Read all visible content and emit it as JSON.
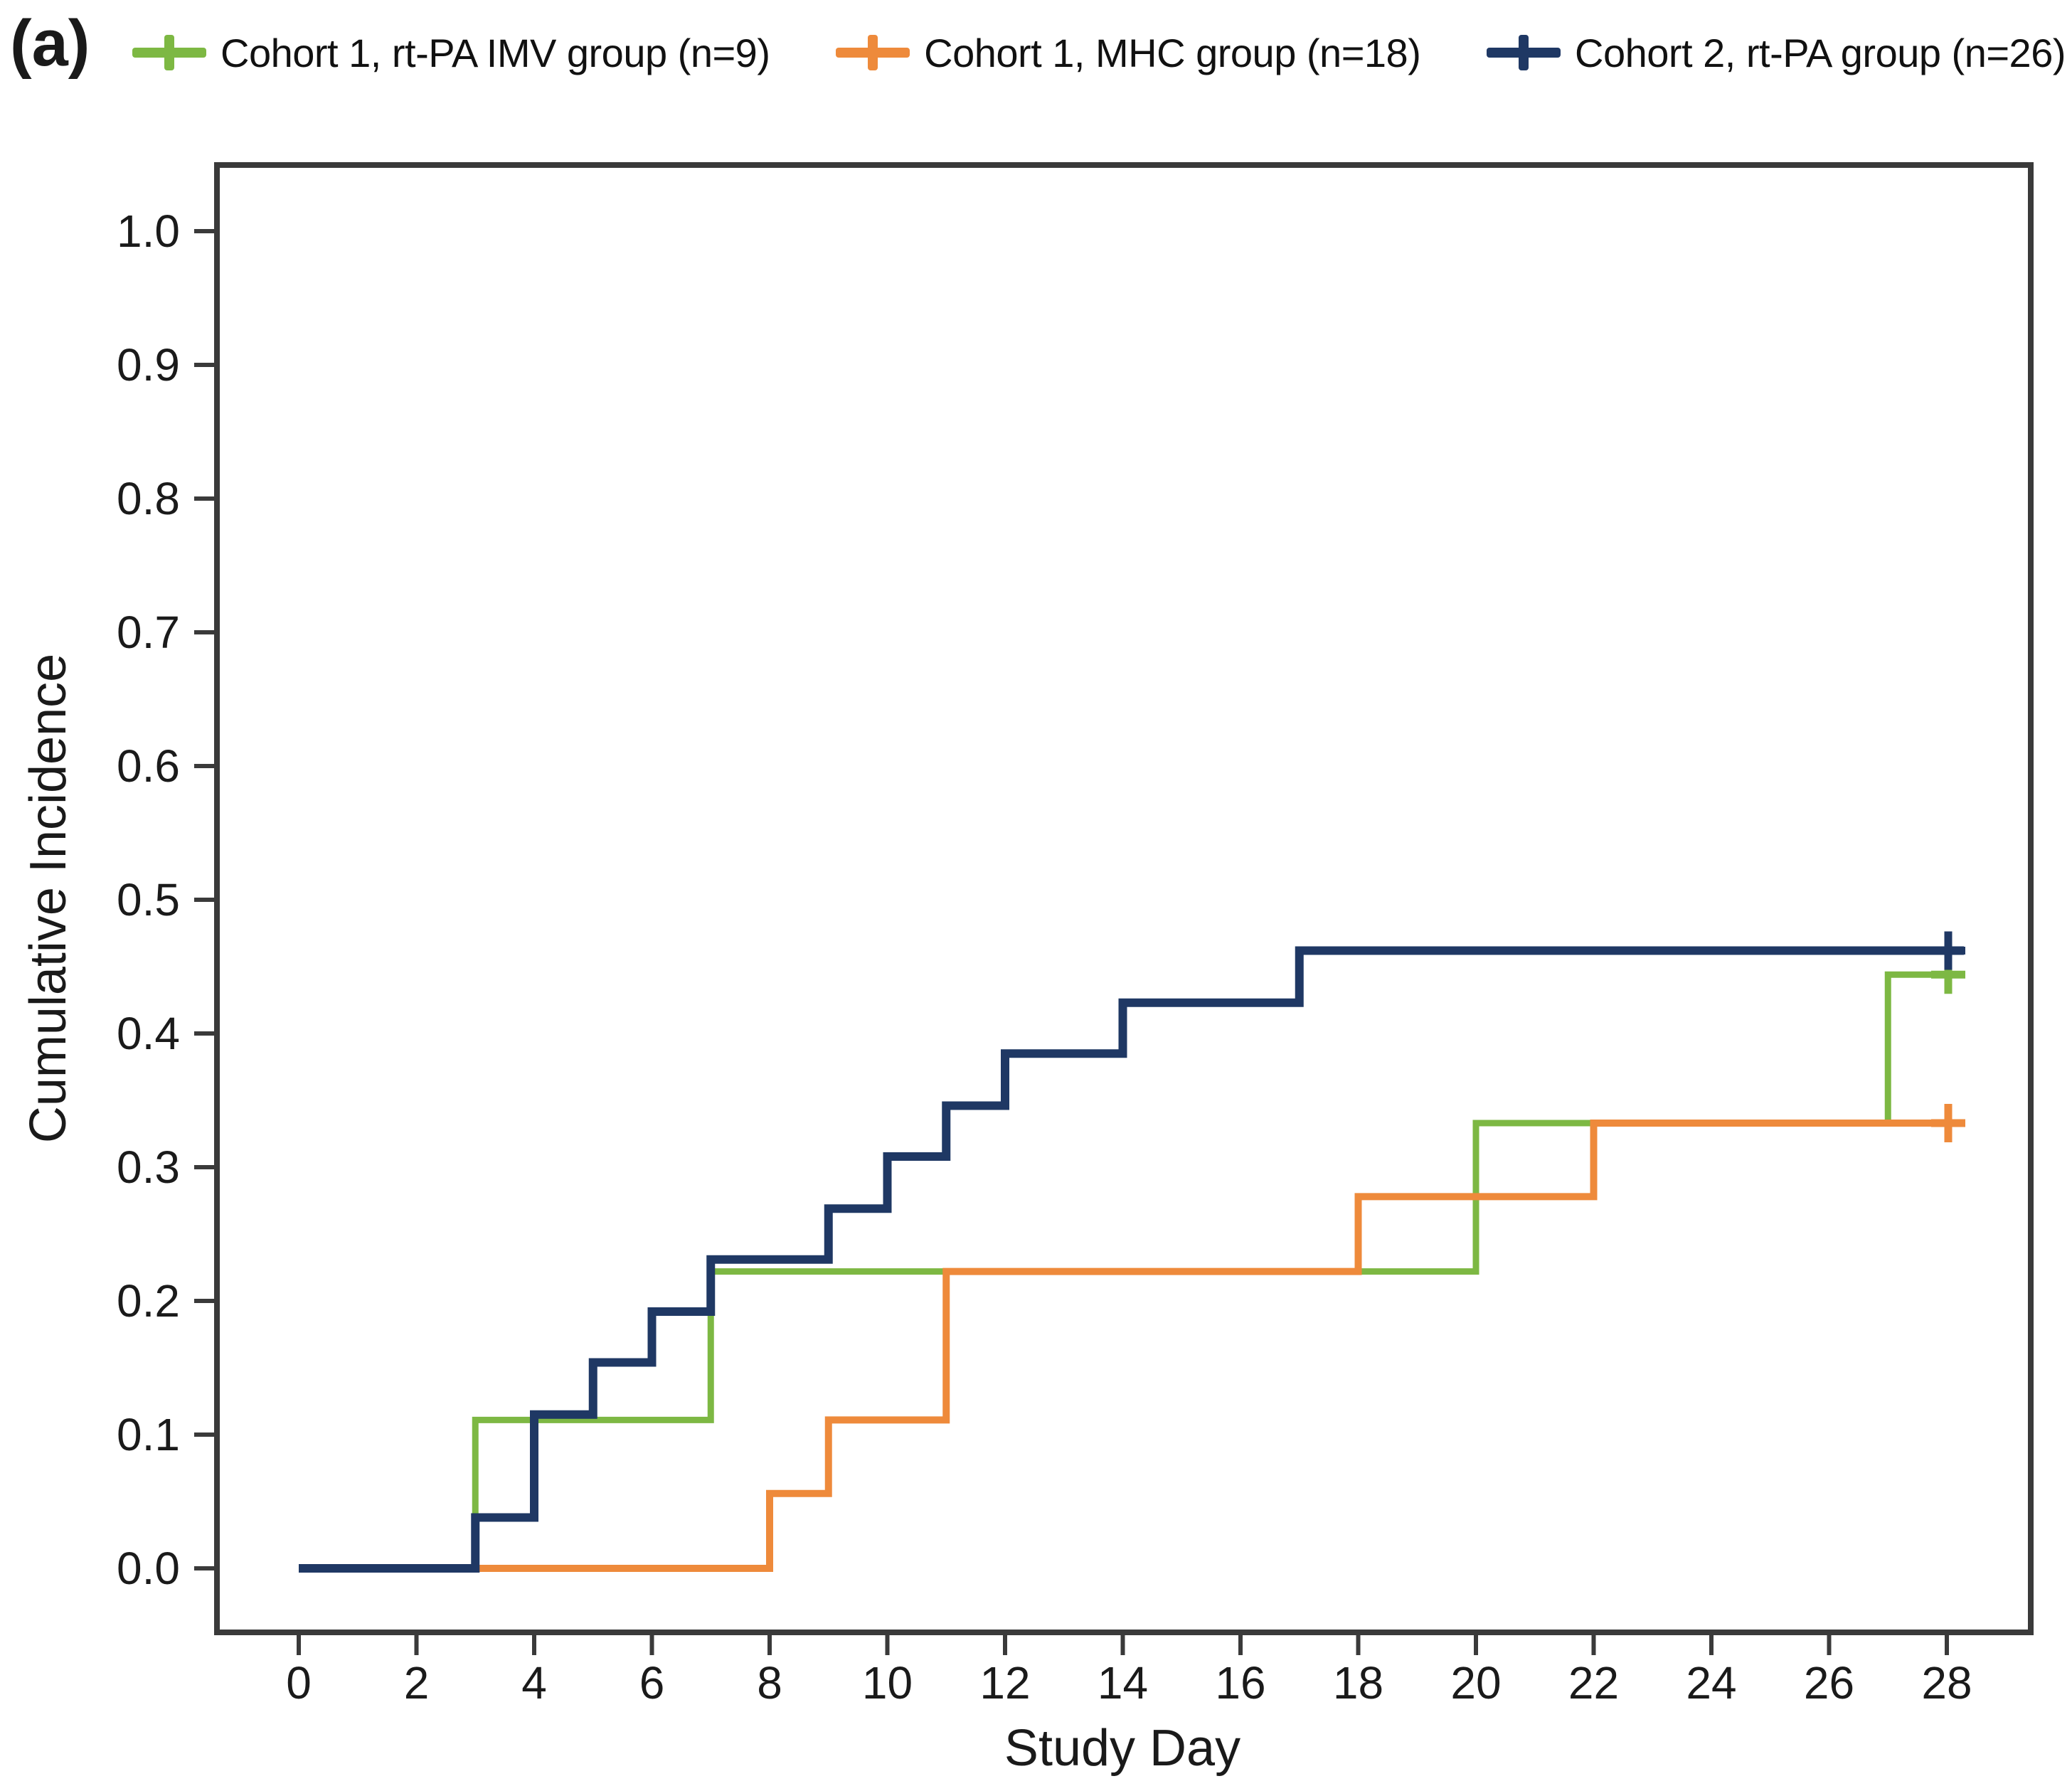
{
  "panel_label": "(a)",
  "legend": {
    "items": [
      {
        "label": "Cohort 1, rt-PA IMV group (n=9)",
        "color": "#7DB843"
      },
      {
        "label": "Cohort 1, MHC group (n=18)",
        "color": "#EE8A3B"
      },
      {
        "label": "Cohort 2, rt-PA group (n=26)",
        "color": "#1F3864"
      }
    ]
  },
  "chart_data": {
    "type": "line",
    "subtype": "step-cumulative-incidence",
    "title": "",
    "xlabel": "Study Day",
    "ylabel": "Cumulative Incidence",
    "xlim": [
      0,
      28
    ],
    "ylim": [
      0.0,
      1.0
    ],
    "x_ticks": [
      0,
      2,
      4,
      6,
      8,
      10,
      12,
      14,
      16,
      18,
      20,
      22,
      24,
      26,
      28
    ],
    "y_ticks": [
      "0.0",
      "0.1",
      "0.2",
      "0.3",
      "0.4",
      "0.5",
      "0.6",
      "0.7",
      "0.8",
      "0.9",
      "1.0"
    ],
    "grid": false,
    "legend_position": "top",
    "axis_color": "#3A3A3A",
    "tick_label_color": "#1A1A1A",
    "series": [
      {
        "name": "Cohort 1, rt-PA IMV group (n=9)",
        "color": "#7DB843",
        "steps": [
          [
            0,
            0
          ],
          [
            3,
            0.111
          ],
          [
            7,
            0.222
          ],
          [
            20,
            0.333
          ],
          [
            27,
            0.444
          ]
        ],
        "end_day": 28,
        "censor": {
          "day": 28,
          "value": 0.444
        }
      },
      {
        "name": "Cohort 1, MHC group (n=18)",
        "color": "#EE8A3B",
        "steps": [
          [
            0,
            0
          ],
          [
            8,
            0.056
          ],
          [
            9,
            0.111
          ],
          [
            11,
            0.222
          ],
          [
            18,
            0.278
          ],
          [
            22,
            0.333
          ]
        ],
        "end_day": 28,
        "censor": {
          "day": 28,
          "value": 0.333
        }
      },
      {
        "name": "Cohort 2, rt-PA group (n=26)",
        "color": "#1F3864",
        "steps": [
          [
            0,
            0
          ],
          [
            3,
            0.038
          ],
          [
            4,
            0.115
          ],
          [
            5,
            0.154
          ],
          [
            6,
            0.192
          ],
          [
            7,
            0.231
          ],
          [
            9,
            0.269
          ],
          [
            10,
            0.308
          ],
          [
            11,
            0.346
          ],
          [
            12,
            0.385
          ],
          [
            14,
            0.423
          ],
          [
            17,
            0.462
          ]
        ],
        "end_day": 28,
        "censor": {
          "day": 28,
          "value": 0.462
        }
      }
    ]
  }
}
